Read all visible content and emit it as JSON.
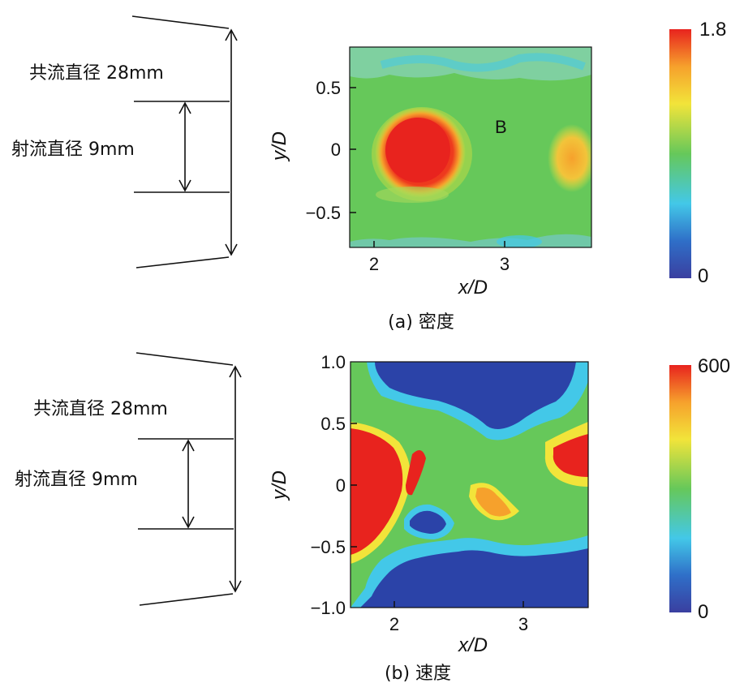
{
  "diagram": {
    "coflow_label": "共流直径 28mm",
    "jet_label": "射流直径 9mm"
  },
  "chart_data": [
    {
      "type": "heatmap",
      "caption": "(a)  密度",
      "xlabel": "x/D",
      "ylabel": "y/D",
      "xlim": [
        1.8,
        3.65
      ],
      "ylim": [
        -0.8,
        0.82
      ],
      "xticks": [
        "2",
        "3"
      ],
      "yticks": [
        "0.5",
        "0",
        "−0.5"
      ],
      "annotation": "B",
      "colorbar": {
        "min": "0",
        "max": "1.8"
      }
    },
    {
      "type": "heatmap",
      "caption": "(b)  速度",
      "xlabel": "x/D",
      "ylabel": "y/D",
      "xlim": [
        1.7,
        3.5
      ],
      "ylim": [
        -1.0,
        1.0
      ],
      "xticks": [
        "2",
        "3"
      ],
      "yticks": [
        "1.0",
        "0.5",
        "0",
        "−0.5",
        "−1.0"
      ],
      "colorbar": {
        "min": "0",
        "max": "600"
      }
    }
  ],
  "colors": {
    "jet_low": "#2b43a8",
    "cyan": "#43c8e8",
    "green": "#66c85a",
    "yellow": "#f2e43a",
    "orange": "#f6a12c",
    "red": "#e8231e"
  }
}
